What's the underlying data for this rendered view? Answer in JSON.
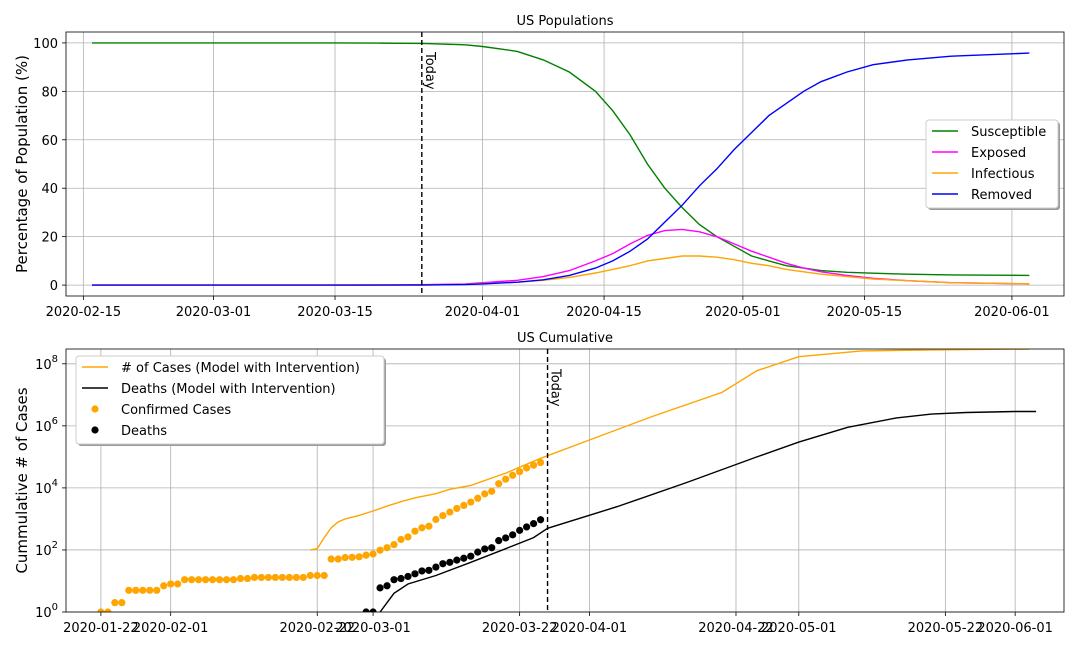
{
  "chart_data": [
    {
      "type": "line",
      "title": "US Populations",
      "xlabel": "",
      "ylabel": "Percentage of Population (%)",
      "ylim": [
        -4.5,
        104.5
      ],
      "xlim": [
        "2020-02-13",
        "2020-06-07"
      ],
      "xticks": [
        "2020-02-15",
        "2020-03-01",
        "2020-03-15",
        "2020-04-01",
        "2020-04-15",
        "2020-05-01",
        "2020-05-15",
        "2020-06-01"
      ],
      "yticks": [
        0,
        20,
        40,
        60,
        80,
        100
      ],
      "grid": true,
      "legend_position": "center-right",
      "vline": {
        "x": "2020-03-25",
        "label": "Today"
      },
      "x": [
        "2020-02-16",
        "2020-02-20",
        "2020-02-25",
        "2020-03-01",
        "2020-03-05",
        "2020-03-10",
        "2020-03-15",
        "2020-03-20",
        "2020-03-25",
        "2020-03-30",
        "2020-04-01",
        "2020-04-05",
        "2020-04-08",
        "2020-04-11",
        "2020-04-14",
        "2020-04-16",
        "2020-04-18",
        "2020-04-20",
        "2020-04-22",
        "2020-04-24",
        "2020-04-26",
        "2020-04-28",
        "2020-04-30",
        "2020-05-02",
        "2020-05-04",
        "2020-05-06",
        "2020-05-08",
        "2020-05-10",
        "2020-05-13",
        "2020-05-16",
        "2020-05-20",
        "2020-05-25",
        "2020-06-03"
      ],
      "series": [
        {
          "name": "Susceptible",
          "color": "#008000",
          "values": [
            100,
            100,
            100,
            100,
            100,
            100,
            100,
            99.9,
            99.8,
            99.2,
            98.5,
            96.5,
            93,
            88,
            80,
            72,
            62,
            50,
            40,
            32,
            25,
            20,
            16,
            12,
            10,
            8,
            7,
            6,
            5.3,
            4.9,
            4.5,
            4.2,
            4.0
          ]
        },
        {
          "name": "Exposed",
          "color": "#ff00ff",
          "values": [
            0,
            0,
            0,
            0,
            0,
            0,
            0,
            0.05,
            0.15,
            0.5,
            1,
            2,
            3.5,
            6,
            10,
            13,
            17,
            20.5,
            22.5,
            23,
            22,
            20,
            17,
            14,
            11.5,
            9,
            7,
            5.5,
            4,
            2.8,
            1.8,
            1,
            0.5
          ]
        },
        {
          "name": "Infectious",
          "color": "#ffa500",
          "values": [
            0,
            0,
            0,
            0,
            0,
            0,
            0,
            0.03,
            0.1,
            0.3,
            0.6,
            1.2,
            2,
            3.2,
            5,
            6.5,
            8,
            10,
            11,
            12,
            12,
            11.5,
            10.5,
            9,
            8,
            6.5,
            5.5,
            4.5,
            3.5,
            2.5,
            1.8,
            1,
            0.5
          ]
        },
        {
          "name": "Removed",
          "color": "#0000ff",
          "values": [
            0,
            0,
            0,
            0,
            0,
            0,
            0,
            0.01,
            0.05,
            0.2,
            0.5,
            1.2,
            2.2,
            4,
            7,
            10,
            14,
            19,
            26,
            33,
            41,
            48,
            56,
            63,
            70,
            75,
            80,
            84,
            88,
            91,
            93,
            94.5,
            95.8
          ]
        }
      ]
    },
    {
      "type": "line",
      "title": "US Cumulative",
      "xlabel": "",
      "ylabel": "Cummulative # of Cases",
      "yscale": "log",
      "ylim": [
        1,
        300000000.0
      ],
      "xlim": [
        "2020-01-17",
        "2020-06-08"
      ],
      "xticks": [
        "2020-01-22",
        "2020-02-01",
        "2020-02-22",
        "2020-03-01",
        "2020-03-22",
        "2020-04-01",
        "2020-04-22",
        "2020-05-01",
        "2020-05-22",
        "2020-06-01"
      ],
      "yticks": [
        "10^0",
        "10^2",
        "10^4",
        "10^6",
        "10^8"
      ],
      "grid": true,
      "legend_position": "upper-left",
      "vline": {
        "x": "2020-03-26",
        "label": "Today"
      },
      "series": [
        {
          "name": "# of Cases (Model with Intervention)",
          "color": "#ffa500",
          "style": "line",
          "x": [
            "2020-02-21",
            "2020-02-22",
            "2020-02-23",
            "2020-02-24",
            "2020-02-25",
            "2020-02-26",
            "2020-02-28",
            "2020-03-01",
            "2020-03-03",
            "2020-03-05",
            "2020-03-07",
            "2020-03-10",
            "2020-03-12",
            "2020-03-15",
            "2020-03-20",
            "2020-03-25",
            "2020-04-01",
            "2020-04-10",
            "2020-04-20",
            "2020-04-25",
            "2020-05-01",
            "2020-05-10",
            "2020-05-20",
            "2020-06-03"
          ],
          "values": [
            100,
            110,
            250,
            520,
            800,
            1000,
            1300,
            1800,
            2600,
            3600,
            4800,
            6500,
            9000,
            12000,
            30000,
            90000,
            350000,
            2000000,
            12000000,
            60000000,
            170000000,
            260000000,
            280000000,
            300000000
          ]
        },
        {
          "name": "Deaths (Model with Intervention)",
          "color": "#000000",
          "style": "line",
          "x": [
            "2020-03-02",
            "2020-03-03",
            "2020-03-04",
            "2020-03-06",
            "2020-03-10",
            "2020-03-15",
            "2020-03-20",
            "2020-03-24",
            "2020-03-26",
            "2020-04-05",
            "2020-04-15",
            "2020-04-25",
            "2020-05-01",
            "2020-05-08",
            "2020-05-15",
            "2020-05-20",
            "2020-05-25",
            "2020-06-01",
            "2020-06-04"
          ],
          "values": [
            1,
            2,
            4,
            8,
            15,
            40,
            110,
            250,
            500,
            2500,
            15000,
            100000,
            300000,
            900000,
            1800000,
            2400000,
            2700000,
            2900000,
            2900000
          ]
        },
        {
          "name": "Confirmed Cases",
          "color": "#ffa500",
          "style": "points",
          "x": [
            "2020-01-22",
            "2020-01-23",
            "2020-01-24",
            "2020-01-25",
            "2020-01-26",
            "2020-01-27",
            "2020-01-28",
            "2020-01-29",
            "2020-01-30",
            "2020-01-31",
            "2020-02-01",
            "2020-02-02",
            "2020-02-03",
            "2020-02-04",
            "2020-02-05",
            "2020-02-06",
            "2020-02-07",
            "2020-02-08",
            "2020-02-09",
            "2020-02-10",
            "2020-02-11",
            "2020-02-12",
            "2020-02-13",
            "2020-02-14",
            "2020-02-15",
            "2020-02-16",
            "2020-02-17",
            "2020-02-18",
            "2020-02-19",
            "2020-02-20",
            "2020-02-21",
            "2020-02-22",
            "2020-02-23",
            "2020-02-24",
            "2020-02-25",
            "2020-02-26",
            "2020-02-27",
            "2020-02-28",
            "2020-02-29",
            "2020-03-01",
            "2020-03-02",
            "2020-03-03",
            "2020-03-04",
            "2020-03-05",
            "2020-03-06",
            "2020-03-07",
            "2020-03-08",
            "2020-03-09",
            "2020-03-10",
            "2020-03-11",
            "2020-03-12",
            "2020-03-13",
            "2020-03-14",
            "2020-03-15",
            "2020-03-16",
            "2020-03-17",
            "2020-03-18",
            "2020-03-19",
            "2020-03-20",
            "2020-03-21",
            "2020-03-22",
            "2020-03-23",
            "2020-03-24",
            "2020-03-25"
          ],
          "values": [
            1,
            1,
            2,
            2,
            5,
            5,
            5,
            5,
            5,
            7,
            8,
            8,
            11,
            11,
            11,
            11,
            11,
            11,
            11,
            11,
            12,
            12,
            13,
            13,
            13,
            13,
            13,
            13,
            13,
            13,
            15,
            15,
            15,
            51,
            51,
            57,
            58,
            60,
            68,
            74,
            98,
            118,
            149,
            217,
            262,
            402,
            518,
            583,
            959,
            1281,
            1663,
            2179,
            2727,
            3499,
            4632,
            6421,
            7786,
            13680,
            19101,
            25493,
            33276,
            43847,
            53740,
            65778
          ]
        },
        {
          "name": "Deaths",
          "color": "#000000",
          "style": "points",
          "x": [
            "2020-02-29",
            "2020-03-01",
            "2020-03-02",
            "2020-03-03",
            "2020-03-04",
            "2020-03-05",
            "2020-03-06",
            "2020-03-07",
            "2020-03-08",
            "2020-03-09",
            "2020-03-10",
            "2020-03-11",
            "2020-03-12",
            "2020-03-13",
            "2020-03-14",
            "2020-03-15",
            "2020-03-16",
            "2020-03-17",
            "2020-03-18",
            "2020-03-19",
            "2020-03-20",
            "2020-03-21",
            "2020-03-22",
            "2020-03-23",
            "2020-03-24",
            "2020-03-25"
          ],
          "values": [
            1,
            1,
            6,
            7,
            11,
            12,
            14,
            17,
            21,
            22,
            28,
            36,
            40,
            47,
            54,
            63,
            85,
            108,
            118,
            200,
            244,
            307,
            427,
            552,
            706,
            942
          ]
        }
      ]
    }
  ]
}
